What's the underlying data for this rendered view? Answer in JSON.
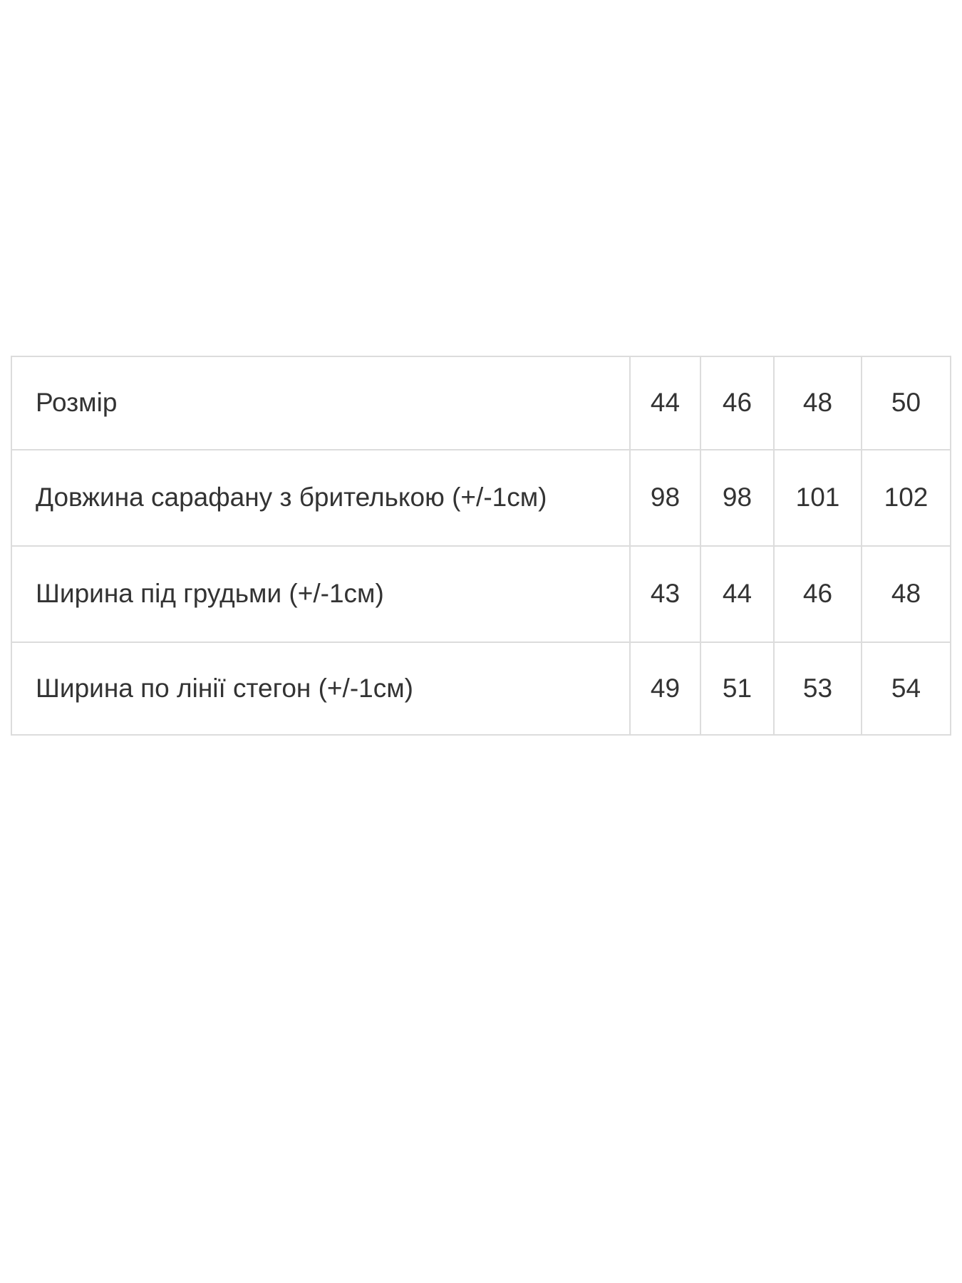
{
  "page": {
    "background": "#ffffff"
  },
  "size_chart": {
    "colors": {
      "text": "#333333",
      "border": "#dcdcdc",
      "background": "#ffffff"
    },
    "rows": [
      {
        "label": "Розмір",
        "values": [
          "44",
          "46",
          "48",
          "50"
        ]
      },
      {
        "label": "Довжина сарафану з брителькою (+/-1см)",
        "values": [
          "98",
          "98",
          "101",
          "102"
        ]
      },
      {
        "label": "Ширина під грудьми (+/-1см)",
        "values": [
          "43",
          "44",
          "46",
          "48"
        ]
      },
      {
        "label": "Ширина по лінії стегон (+/-1см)",
        "values": [
          "49",
          "51",
          "53",
          "54"
        ]
      }
    ]
  }
}
